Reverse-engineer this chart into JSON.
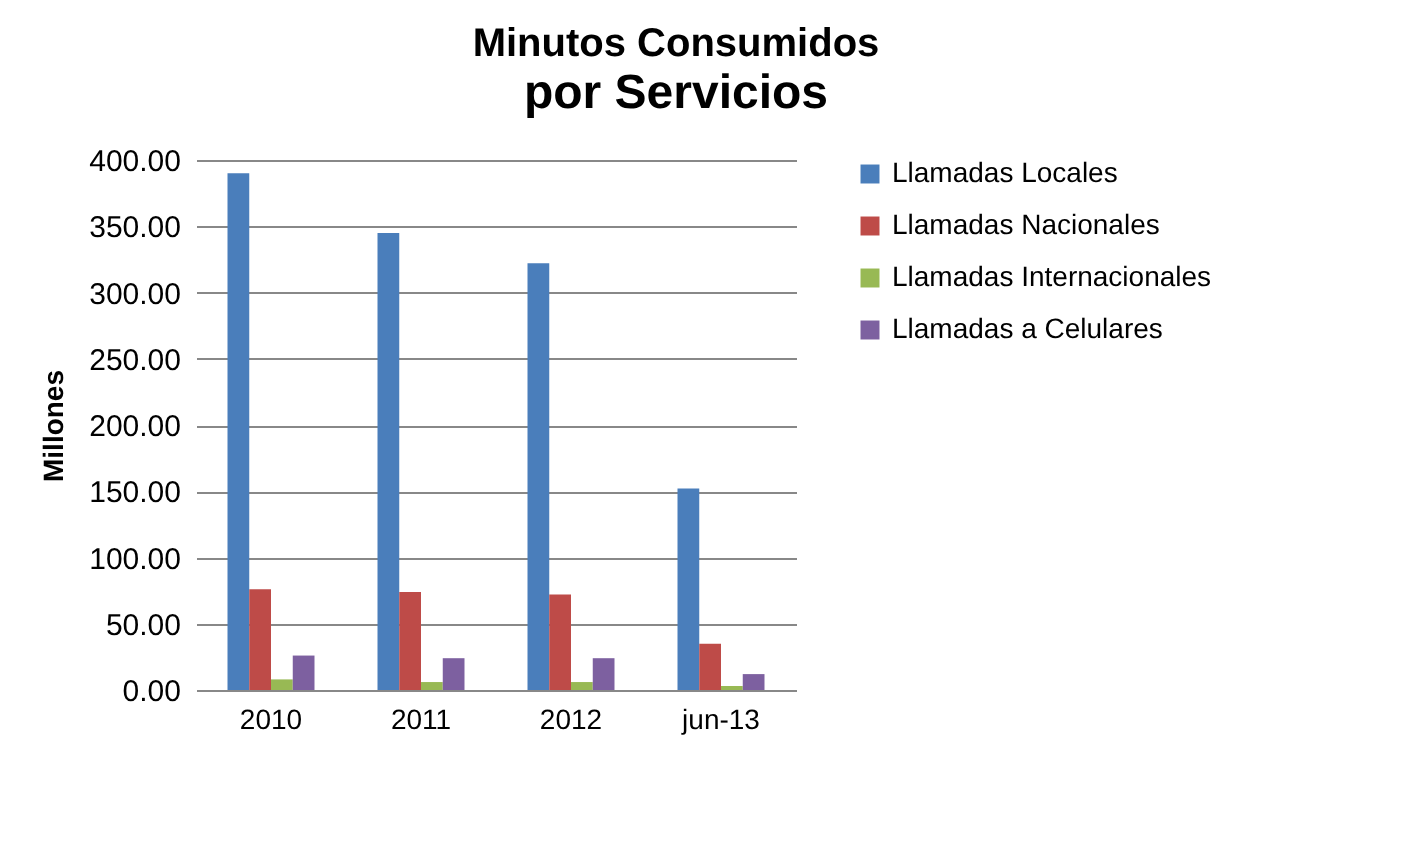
{
  "chart_data": {
    "type": "bar",
    "title": "Minutos Consumidos",
    "subtitle": "por Servicios",
    "ylabel": "Millones",
    "categories": [
      "2010",
      "2011",
      "2012",
      "jun-13"
    ],
    "series": [
      {
        "name": "Llamadas  Locales",
        "color": "#4a7ebb",
        "values": [
          390,
          345,
          322,
          152
        ]
      },
      {
        "name": "Llamadas Nacionales",
        "color": "#be4b48",
        "values": [
          76,
          74,
          72,
          35
        ]
      },
      {
        "name": "Llamadas Internacionales",
        "color": "#98b954",
        "values": [
          8,
          6,
          6,
          3
        ]
      },
      {
        "name": "Llamadas a Celulares",
        "color": "#7d60a0",
        "values": [
          26,
          24,
          24,
          12
        ]
      }
    ],
    "ylim": [
      0,
      400
    ],
    "yticks": [
      {
        "value": 0,
        "label": "0.00"
      },
      {
        "value": 50,
        "label": "50.00"
      },
      {
        "value": 100,
        "label": "100.00"
      },
      {
        "value": 150,
        "label": "150.00"
      },
      {
        "value": 200,
        "label": "200.00"
      },
      {
        "value": 250,
        "label": "250.00"
      },
      {
        "value": 300,
        "label": "300.00"
      },
      {
        "value": 350,
        "label": "350.00"
      },
      {
        "value": 400,
        "label": "400.00"
      }
    ],
    "grid": "y",
    "legend": "right"
  }
}
